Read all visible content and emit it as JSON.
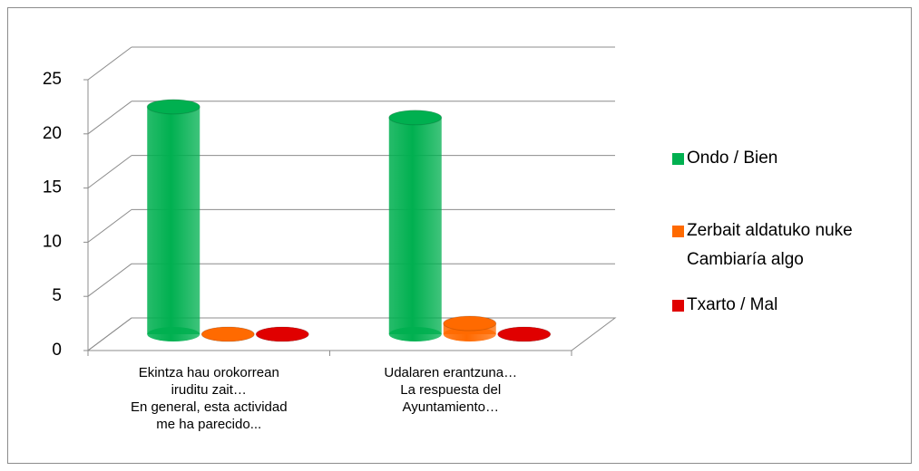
{
  "chart_data": {
    "type": "bar3d",
    "categories": [
      "Ekintza hau orokorrean\niruditu zait…\nEn general, esta actividad\nme ha parecido...",
      "Udalaren erantzuna…\nLa respuesta del\nAyuntamiento…"
    ],
    "series": [
      {
        "name": "Ondo / Bien",
        "color": "#00b050",
        "values": [
          21,
          20
        ]
      },
      {
        "name": "Zerbait aldatuko nuke\nCambiaría algo",
        "color": "#ff6a00",
        "values": [
          0,
          1
        ]
      },
      {
        "name": "Txarto / Mal",
        "color": "#e00000",
        "values": [
          0,
          0
        ]
      }
    ],
    "ylim": [
      0,
      25
    ],
    "yticks": [
      0,
      5,
      10,
      15,
      20,
      25
    ],
    "grid": true,
    "legend": "right"
  }
}
